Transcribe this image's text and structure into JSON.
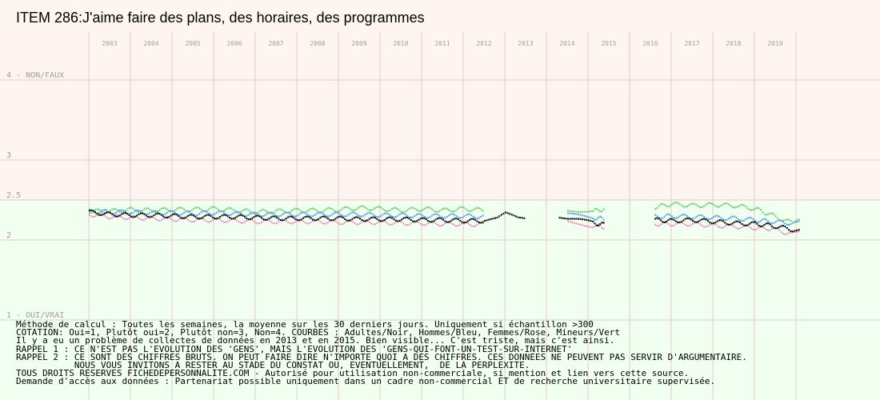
{
  "title": "ITEM 286:J'aime faire des plans, des horaires, des programmes",
  "y_labels": {
    "top": "4 - NON/FAUX",
    "l3": "3",
    "l25": "2.5",
    "l2": "2",
    "bottom": "1 - OUI/VRAI"
  },
  "notes": [
    "Méthode de calcul : Toutes les semaines, la moyenne sur les 30 derniers jours. Uniquement si échantillon >300",
    "COTATION: Oui=1, Plutôt oui=2, Plutôt non=3, Non=4. COURBES : Adultes/Noir, Hommes/Bleu, Femmes/Rose, Mineurs/Vert",
    "Il y a eu un problème de collectes de données en 2013 et en 2015. Bien visible... C'est triste, mais c'est ainsi.",
    "RAPPEL 1 : CE N'EST PAS L'EVOLUTION DES 'GENS', MAIS L'EVOLUTION DES 'GENS-QUI-FONT-UN-TEST-SUR-INTERNET'",
    "RAPPEL 2 : CE SONT DES CHIFFRES BRUTS. ON PEUT FAIRE DIRE N'IMPORTE QUOI A DES CHIFFRES. CES DONNEES NE PEUVENT PAS SERVIR D'ARGUMENTAIRE.",
    "           NOUS VOUS INVITONS A RESTER AU STADE DU CONSTAT OU, EVENTUELLEMENT,  DE LA PERPLEXITE.",
    "TOUS DROITS RESERVES FICHEDEPERSONNALITE.COM - Autorisé pour utilisation non-commerciale, si mention et lien vers cette source.",
    "Demande d'accès aux données : Partenariat possible uniquement dans un cadre non-commercial ET de recherche universitaire supervisée."
  ],
  "colors": {
    "upper_band": "#fff5f0",
    "lower_band": "#f0fff0",
    "grid": "#e6c8c8",
    "year_label": "#a0a0a0",
    "adultes": "#000000",
    "hommes": "#5aa0f0",
    "femmes": "#f090c8",
    "mineurs": "#70d070"
  },
  "chart_data": {
    "type": "scatter",
    "title": "ITEM 286:J'aime faire des plans, des horaires, des programmes",
    "x_ticks": [
      "2003",
      "2004",
      "2005",
      "2006",
      "2007",
      "2008",
      "2009",
      "2010",
      "2011",
      "2012",
      "2013",
      "2014",
      "2015",
      "2016",
      "2017",
      "2018",
      "2019"
    ],
    "ylim": [
      1,
      4
    ],
    "y_ticks": [
      {
        "value": 4,
        "label": "4 - NON/FAUX"
      },
      {
        "value": 3,
        "label": "3"
      },
      {
        "value": 2.5,
        "label": "2.5"
      },
      {
        "value": 2,
        "label": "2"
      },
      {
        "value": 1,
        "label": "1 - OUI/VRAI"
      }
    ],
    "grid": true,
    "series": [
      {
        "name": "Adultes/Noir",
        "color_key": "adultes",
        "points": [
          [
            2002.5,
            2.36
          ],
          [
            2003.0,
            2.33
          ],
          [
            2003.5,
            2.32
          ],
          [
            2004.0,
            2.32
          ],
          [
            2004.5,
            2.31
          ],
          [
            2005.0,
            2.3
          ],
          [
            2005.5,
            2.3
          ],
          [
            2006.0,
            2.3
          ],
          [
            2006.5,
            2.29
          ],
          [
            2007.0,
            2.28
          ],
          [
            2007.5,
            2.28
          ],
          [
            2008.0,
            2.28
          ],
          [
            2008.5,
            2.28
          ],
          [
            2009.0,
            2.27
          ],
          [
            2009.5,
            2.27
          ],
          [
            2010.0,
            2.27
          ],
          [
            2010.5,
            2.26
          ],
          [
            2011.0,
            2.26
          ],
          [
            2011.5,
            2.25
          ],
          [
            2012.0,
            2.25
          ],
          [
            2012.3,
            2.27
          ],
          [
            2012.5,
            2.33
          ],
          [
            2012.8,
            2.28
          ],
          [
            2013.0,
            2.28
          ],
          [
            2013.8,
            2.3
          ],
          [
            2014.0,
            2.27
          ],
          [
            2014.3,
            2.25
          ],
          [
            2014.6,
            2.22
          ],
          [
            2014.9,
            2.2
          ],
          [
            2016.1,
            2.26
          ],
          [
            2016.5,
            2.25
          ],
          [
            2017.0,
            2.26
          ],
          [
            2017.5,
            2.24
          ],
          [
            2018.0,
            2.22
          ],
          [
            2018.5,
            2.21
          ],
          [
            2018.9,
            2.19
          ],
          [
            2019.4,
            2.14
          ],
          [
            2019.6,
            2.16
          ]
        ]
      },
      {
        "name": "Hommes/Bleu",
        "color_key": "hommes",
        "points": [
          [
            2002.5,
            2.37
          ],
          [
            2003.0,
            2.36
          ],
          [
            2003.5,
            2.36
          ],
          [
            2004.0,
            2.35
          ],
          [
            2004.5,
            2.35
          ],
          [
            2005.0,
            2.34
          ],
          [
            2005.5,
            2.35
          ],
          [
            2006.0,
            2.34
          ],
          [
            2006.5,
            2.33
          ],
          [
            2007.0,
            2.33
          ],
          [
            2007.5,
            2.33
          ],
          [
            2008.0,
            2.33
          ],
          [
            2008.5,
            2.33
          ],
          [
            2009.0,
            2.33
          ],
          [
            2009.5,
            2.32
          ],
          [
            2010.0,
            2.32
          ],
          [
            2010.5,
            2.31
          ],
          [
            2011.0,
            2.31
          ],
          [
            2011.5,
            2.31
          ],
          [
            2012.0,
            2.3
          ],
          [
            2014.0,
            2.32
          ],
          [
            2014.3,
            2.31
          ],
          [
            2014.6,
            2.29
          ],
          [
            2014.9,
            2.27
          ],
          [
            2016.1,
            2.3
          ],
          [
            2016.5,
            2.31
          ],
          [
            2017.0,
            2.3
          ],
          [
            2017.5,
            2.29
          ],
          [
            2018.0,
            2.28
          ],
          [
            2018.5,
            2.26
          ],
          [
            2018.9,
            2.24
          ],
          [
            2019.4,
            2.22
          ],
          [
            2019.6,
            2.26
          ]
        ]
      },
      {
        "name": "Femmes/Rose",
        "color_key": "femmes",
        "points": [
          [
            2002.5,
            2.33
          ],
          [
            2003.0,
            2.3
          ],
          [
            2003.5,
            2.29
          ],
          [
            2004.0,
            2.28
          ],
          [
            2004.5,
            2.27
          ],
          [
            2005.0,
            2.26
          ],
          [
            2005.5,
            2.26
          ],
          [
            2006.0,
            2.25
          ],
          [
            2006.5,
            2.24
          ],
          [
            2007.0,
            2.24
          ],
          [
            2007.5,
            2.24
          ],
          [
            2008.0,
            2.24
          ],
          [
            2008.5,
            2.23
          ],
          [
            2009.0,
            2.23
          ],
          [
            2009.5,
            2.23
          ],
          [
            2010.0,
            2.22
          ],
          [
            2010.5,
            2.22
          ],
          [
            2011.0,
            2.21
          ],
          [
            2011.5,
            2.21
          ],
          [
            2012.0,
            2.2
          ],
          [
            2014.0,
            2.24
          ],
          [
            2014.3,
            2.22
          ],
          [
            2014.6,
            2.19
          ],
          [
            2014.9,
            2.17
          ],
          [
            2016.1,
            2.21
          ],
          [
            2016.5,
            2.21
          ],
          [
            2017.0,
            2.21
          ],
          [
            2017.5,
            2.19
          ],
          [
            2018.0,
            2.18
          ],
          [
            2018.5,
            2.16
          ],
          [
            2018.9,
            2.15
          ],
          [
            2019.4,
            2.08
          ],
          [
            2019.6,
            2.1
          ]
        ]
      },
      {
        "name": "Mineurs/Vert",
        "color_key": "mineurs",
        "points": [
          [
            2002.5,
            2.37
          ],
          [
            2003.0,
            2.37
          ],
          [
            2003.5,
            2.39
          ],
          [
            2004.0,
            2.38
          ],
          [
            2004.5,
            2.39
          ],
          [
            2005.0,
            2.39
          ],
          [
            2005.5,
            2.4
          ],
          [
            2006.0,
            2.38
          ],
          [
            2006.5,
            2.36
          ],
          [
            2007.0,
            2.37
          ],
          [
            2007.5,
            2.38
          ],
          [
            2008.0,
            2.38
          ],
          [
            2008.5,
            2.39
          ],
          [
            2009.0,
            2.41
          ],
          [
            2009.5,
            2.4
          ],
          [
            2010.0,
            2.38
          ],
          [
            2010.5,
            2.4
          ],
          [
            2011.0,
            2.38
          ],
          [
            2011.5,
            2.4
          ],
          [
            2012.0,
            2.38
          ],
          [
            2014.0,
            2.4
          ],
          [
            2014.3,
            2.38
          ],
          [
            2014.6,
            2.37
          ],
          [
            2014.9,
            2.4
          ],
          [
            2016.1,
            2.42
          ],
          [
            2016.5,
            2.46
          ],
          [
            2017.0,
            2.44
          ],
          [
            2017.5,
            2.45
          ],
          [
            2018.0,
            2.44
          ],
          [
            2018.5,
            2.4
          ],
          [
            2018.9,
            2.32
          ],
          [
            2019.4,
            2.22
          ],
          [
            2019.6,
            2.26
          ]
        ]
      }
    ]
  }
}
